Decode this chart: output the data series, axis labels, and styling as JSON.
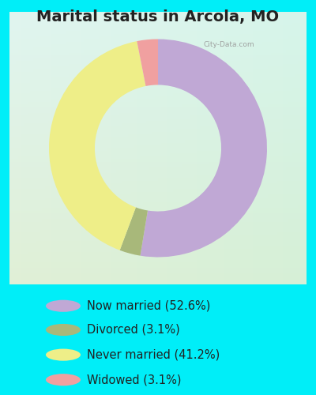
{
  "title": "Marital status in Arcola, MO",
  "slices": [
    52.6,
    3.1,
    41.2,
    3.1
  ],
  "labels": [
    "Now married (52.6%)",
    "Divorced (3.1%)",
    "Never married (41.2%)",
    "Widowed (3.1%)"
  ],
  "colors": [
    "#c0a8d5",
    "#a8b87a",
    "#eeee88",
    "#f0a0a0"
  ],
  "title_fontsize": 14,
  "legend_fontsize": 10.5,
  "watermark": "City-Data.com",
  "startangle": 90,
  "outer_bg": "#00eef8",
  "chart_bg_tl": [
    0.88,
    0.96,
    0.94
  ],
  "chart_bg_br": [
    0.84,
    0.94,
    0.84
  ]
}
